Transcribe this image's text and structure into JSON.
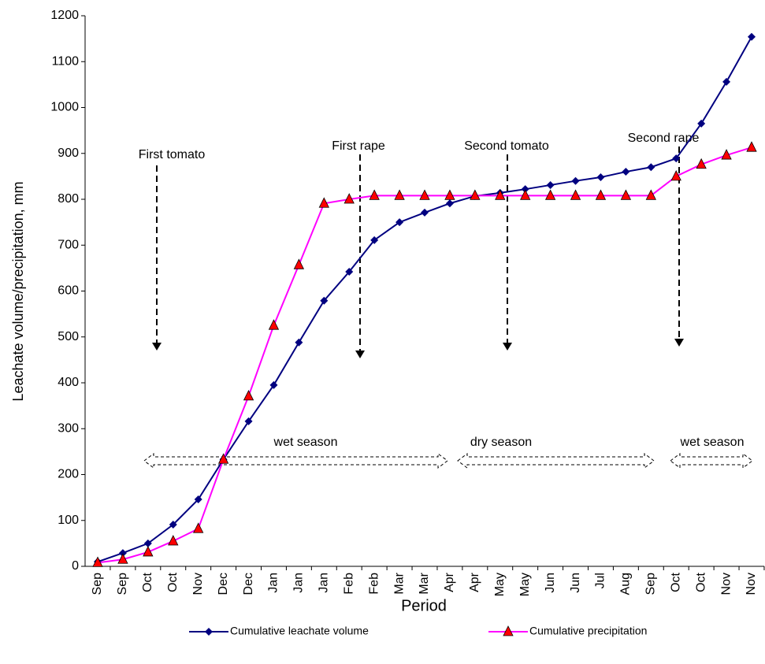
{
  "chart_data": {
    "type": "line",
    "y_label": "Leachate volume/precipitation, mm",
    "x_label": "Period",
    "categories": [
      "Sep",
      "Sep",
      "Oct",
      "Oct",
      "Nov",
      "Dec",
      "Dec",
      "Jan",
      "Jan",
      "Jan",
      "Feb",
      "Feb",
      "Mar",
      "Mar",
      "Apr",
      "Apr",
      "May",
      "May",
      "Jun",
      "Jun",
      "Jul",
      "Aug",
      "Sep",
      "Oct",
      "Oct",
      "Nov",
      "Nov"
    ],
    "series": [
      {
        "name": "Cumulative leachate volume",
        "color": "#000080",
        "marker": "diamond",
        "marker_color": "#000080",
        "values": [
          10,
          29,
          50,
          91,
          146,
          233,
          316,
          395,
          488,
          579,
          642,
          711,
          750,
          771,
          791,
          807,
          814,
          822,
          831,
          840,
          848,
          860,
          870,
          889,
          965,
          1056,
          1154
        ]
      },
      {
        "name": "Cumulative precipitation",
        "color": "#ff00ff",
        "marker": "triangle",
        "marker_color": "#ff0000",
        "values": [
          8,
          15,
          31,
          55,
          82,
          233,
          371,
          525,
          657,
          791,
          800,
          808,
          808,
          808,
          808,
          808,
          808,
          808,
          808,
          808,
          808,
          808,
          808,
          850,
          876,
          896,
          913
        ]
      }
    ],
    "ylim": [
      0,
      1200
    ],
    "yticks": [
      0,
      100,
      200,
      300,
      400,
      500,
      600,
      700,
      800,
      900,
      1000,
      1100,
      1200
    ],
    "annotations": [
      "First tomato",
      "First rape",
      "Second tomato",
      "Second rape"
    ],
    "seasons": [
      "wet season",
      "dry season",
      "wet season"
    ]
  }
}
